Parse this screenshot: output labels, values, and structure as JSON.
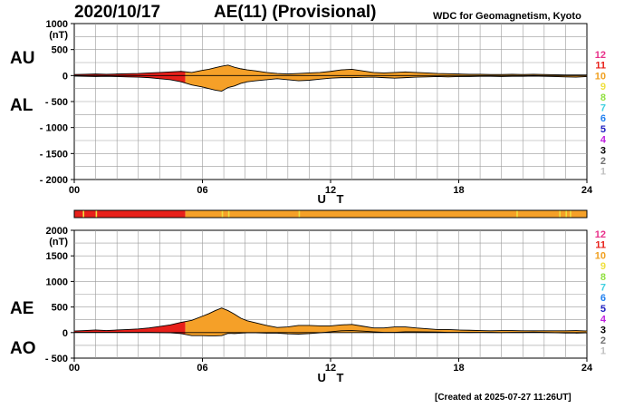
{
  "header": {
    "date": "2020/10/17",
    "title": "AE(11) (Provisional)",
    "org": "WDC for Geomagnetism, Kyoto",
    "created": "[Created at 2025-07-27 11:26UT]"
  },
  "legend": [
    {
      "label": "12",
      "color": "#e8308a"
    },
    {
      "label": "11",
      "color": "#e8201a"
    },
    {
      "label": "10",
      "color": "#f0a020"
    },
    {
      "label": "9",
      "color": "#f0e040"
    },
    {
      "label": "8",
      "color": "#90e040"
    },
    {
      "label": "7",
      "color": "#40d0e0"
    },
    {
      "label": "6",
      "color": "#2080f0"
    },
    {
      "label": "5",
      "color": "#2020c0"
    },
    {
      "label": "4",
      "color": "#c020e0"
    },
    {
      "label": "3",
      "color": "#000000"
    },
    {
      "label": "2",
      "color": "#707070"
    },
    {
      "label": "1",
      "color": "#c0c0c0"
    }
  ],
  "colors": {
    "fill_station_11": "#e8201a",
    "fill_station_10": "#f5a028",
    "status_9": "#f0e040"
  },
  "chart_data": [
    {
      "type": "area",
      "name_upper": "AU",
      "name_lower": "AL",
      "unit": "(nT)",
      "xlabel": "U T",
      "xticks": [
        "00",
        "06",
        "12",
        "18",
        "24"
      ],
      "xlim": [
        0,
        24
      ],
      "ylim": [
        -2000,
        1000
      ],
      "yticks": [
        1000,
        500,
        0,
        -500,
        -1000,
        -1500,
        -2000
      ],
      "ytick_labels": [
        "1000",
        "500",
        "0",
        "- 500",
        "- 1000",
        "- 1500",
        "- 2000"
      ],
      "x": [
        0,
        0.5,
        1,
        1.5,
        2,
        2.5,
        3,
        3.5,
        4,
        4.5,
        5,
        5.5,
        6,
        6.3,
        6.6,
        6.9,
        7.2,
        7.5,
        7.8,
        8.1,
        8.5,
        9,
        9.5,
        10,
        10.5,
        11,
        11.5,
        12,
        12.5,
        13,
        13.5,
        14,
        14.5,
        15,
        15.5,
        16,
        16.5,
        17,
        17.5,
        18,
        18.5,
        19,
        19.5,
        20,
        20.5,
        21,
        21.5,
        22,
        22.5,
        23,
        23.5,
        24
      ],
      "series": [
        {
          "values": [
            20,
            25,
            30,
            25,
            30,
            35,
            40,
            50,
            60,
            70,
            80,
            60,
            100,
            120,
            150,
            180,
            200,
            160,
            130,
            110,
            90,
            60,
            40,
            30,
            40,
            50,
            60,
            80,
            110,
            120,
            90,
            60,
            50,
            60,
            70,
            60,
            50,
            40,
            35,
            30,
            25,
            25,
            20,
            20,
            25,
            20,
            25,
            20,
            15,
            10,
            10,
            10
          ]
        },
        {
          "values": [
            -10,
            -15,
            -20,
            -15,
            -20,
            -25,
            -30,
            -40,
            -60,
            -80,
            -120,
            -180,
            -220,
            -250,
            -280,
            -300,
            -230,
            -200,
            -150,
            -120,
            -100,
            -80,
            -60,
            -80,
            -100,
            -90,
            -70,
            -50,
            -40,
            -40,
            -35,
            -30,
            -40,
            -50,
            -40,
            -30,
            -25,
            -20,
            -25,
            -20,
            -20,
            -15,
            -15,
            -20,
            -15,
            -15,
            -10,
            -15,
            -20,
            -25,
            -30,
            -20
          ]
        }
      ]
    },
    {
      "type": "area",
      "name_upper": "AE",
      "name_lower": "AO",
      "unit": "(nT)",
      "xlabel": "U T",
      "xticks": [
        "00",
        "06",
        "12",
        "18",
        "24"
      ],
      "xlim": [
        0,
        24
      ],
      "ylim": [
        -500,
        2000
      ],
      "yticks": [
        2000,
        1500,
        1000,
        500,
        0,
        -500
      ],
      "ytick_labels": [
        "2000",
        "1500",
        "1000",
        "500",
        "0",
        "- 500"
      ],
      "x": [
        0,
        0.5,
        1,
        1.5,
        2,
        2.5,
        3,
        3.5,
        4,
        4.5,
        5,
        5.5,
        6,
        6.3,
        6.6,
        6.9,
        7.2,
        7.5,
        7.8,
        8.1,
        8.5,
        9,
        9.5,
        10,
        10.5,
        11,
        11.5,
        12,
        12.5,
        13,
        13.5,
        14,
        14.5,
        15,
        15.5,
        16,
        16.5,
        17,
        17.5,
        18,
        18.5,
        19,
        19.5,
        20,
        20.5,
        21,
        21.5,
        22,
        22.5,
        23,
        23.5,
        24
      ],
      "series": [
        {
          "values": [
            30,
            40,
            50,
            40,
            50,
            60,
            70,
            90,
            120,
            150,
            200,
            240,
            320,
            370,
            430,
            480,
            430,
            360,
            280,
            230,
            190,
            140,
            100,
            110,
            140,
            140,
            130,
            130,
            150,
            160,
            125,
            90,
            90,
            110,
            110,
            90,
            75,
            60,
            60,
            50,
            45,
            40,
            35,
            40,
            40,
            35,
            35,
            35,
            35,
            35,
            40,
            30
          ]
        },
        {
          "values": [
            5,
            5,
            5,
            5,
            5,
            5,
            5,
            5,
            0,
            -5,
            -20,
            -60,
            -60,
            -65,
            -65,
            -60,
            -15,
            -20,
            -10,
            -5,
            -5,
            -10,
            -10,
            -25,
            -30,
            -20,
            -5,
            15,
            35,
            40,
            28,
            15,
            5,
            5,
            15,
            15,
            13,
            10,
            5,
            5,
            3,
            5,
            3,
            0,
            5,
            3,
            8,
            3,
            -3,
            -8,
            -10,
            -5
          ]
        }
      ]
    }
  ],
  "status_bar": {
    "segments": [
      {
        "from": 0,
        "to": 5.2,
        "level": 11
      },
      {
        "from": 5.2,
        "to": 24,
        "level": 10
      }
    ],
    "marks": [
      0.4,
      1.0,
      6.9,
      7.2,
      10.5,
      20.7,
      22.7,
      23.0,
      23.2
    ]
  }
}
